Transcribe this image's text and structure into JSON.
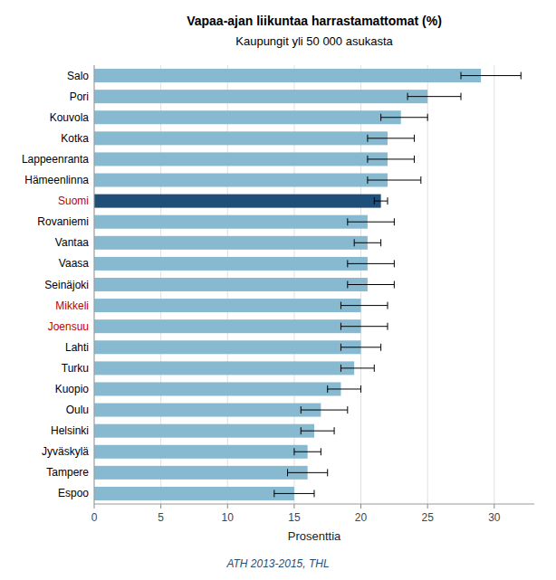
{
  "chart_data": {
    "type": "bar",
    "orientation": "horizontal",
    "title": "Vapaa-ajan liikuntaa harrastamattomat (%)",
    "subtitle": "Kaupungit yli 50 000 asukasta",
    "xlabel": "Prosenttia",
    "annotations": [
      "ATH 2013-2015, THL"
    ],
    "categories": [
      "Salo",
      "Pori",
      "Kouvola",
      "Kotka",
      "Lappeenranta",
      "Hämeenlinna",
      "Suomi",
      "Rovaniemi",
      "Vantaa",
      "Vaasa",
      "Seinäjoki",
      "Mikkeli",
      "Joensuu",
      "Lahti",
      "Turku",
      "Kuopio",
      "Oulu",
      "Helsinki",
      "Jyväskylä",
      "Tampere",
      "Espoo"
    ],
    "values": [
      29.0,
      25.0,
      23.0,
      22.0,
      22.0,
      22.0,
      21.5,
      20.5,
      20.5,
      20.5,
      20.5,
      20.0,
      20.0,
      20.0,
      19.5,
      18.5,
      17.0,
      16.5,
      16.0,
      16.0,
      15.0
    ],
    "error_minus": [
      1.5,
      1.5,
      1.5,
      1.5,
      1.5,
      1.5,
      0.5,
      1.5,
      1.0,
      1.5,
      1.5,
      1.5,
      1.5,
      1.5,
      1.0,
      1.0,
      1.5,
      1.0,
      1.0,
      1.5,
      1.5
    ],
    "error_plus": [
      3.0,
      2.5,
      2.0,
      2.0,
      2.0,
      2.5,
      0.5,
      2.0,
      1.0,
      2.0,
      2.0,
      2.0,
      2.0,
      1.5,
      1.5,
      1.5,
      2.0,
      1.5,
      1.0,
      1.5,
      1.5
    ],
    "colors": [
      "#87b9d1",
      "#87b9d1",
      "#87b9d1",
      "#87b9d1",
      "#87b9d1",
      "#87b9d1",
      "#1f4e79",
      "#87b9d1",
      "#87b9d1",
      "#87b9d1",
      "#87b9d1",
      "#87b9d1",
      "#87b9d1",
      "#87b9d1",
      "#87b9d1",
      "#87b9d1",
      "#87b9d1",
      "#87b9d1",
      "#87b9d1",
      "#87b9d1",
      "#87b9d1"
    ],
    "label_colors": [
      "#000000",
      "#000000",
      "#000000",
      "#000000",
      "#000000",
      "#000000",
      "#c00000",
      "#000000",
      "#000000",
      "#000000",
      "#000000",
      "#c00000",
      "#c00000",
      "#000000",
      "#000000",
      "#000000",
      "#000000",
      "#000000",
      "#000000",
      "#000000",
      "#000000"
    ],
    "xlim": [
      0,
      33
    ],
    "xticks": [
      0,
      5,
      10,
      15,
      20,
      25,
      30
    ],
    "grid": true
  }
}
